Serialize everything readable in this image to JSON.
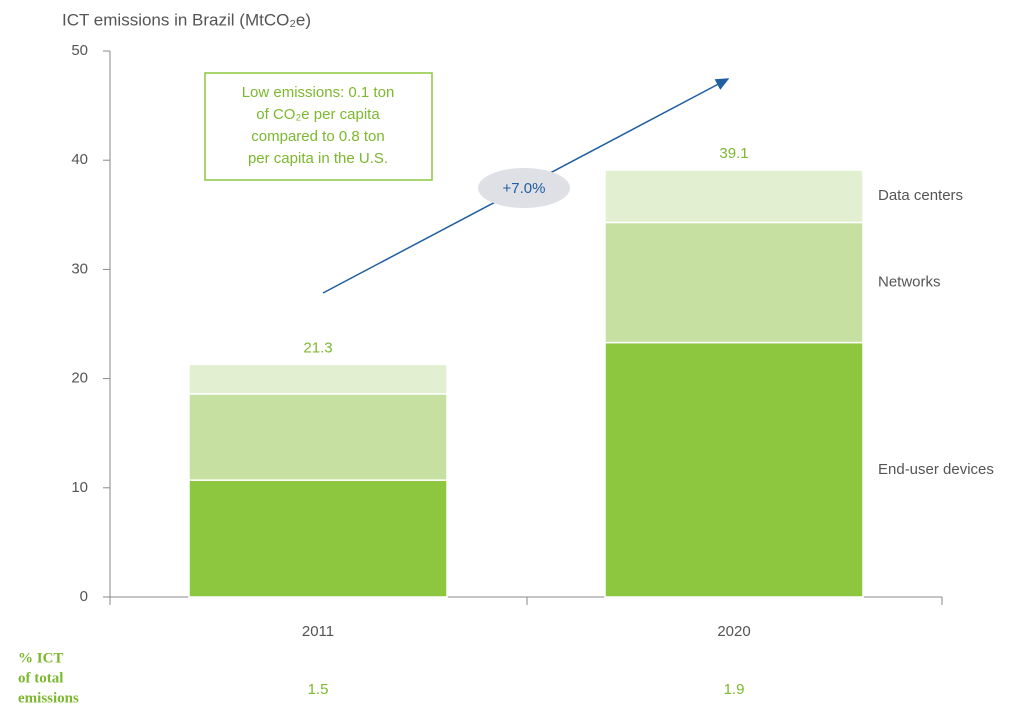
{
  "chart_data": {
    "type": "bar",
    "stacked": true,
    "title": "ICT emissions in Brazil (MtCO₂e)",
    "categories": [
      "2011",
      "2020"
    ],
    "series": [
      {
        "name": "End-user devices",
        "color": "#8dc63f",
        "values": [
          10.7,
          23.3
        ]
      },
      {
        "name": "Networks",
        "color": "#c5e0a0",
        "values": [
          7.9,
          11.0
        ]
      },
      {
        "name": "Data centers",
        "color": "#e2efd0",
        "values": [
          2.7,
          4.8
        ]
      }
    ],
    "totals": [
      21.3,
      39.1
    ],
    "ylim": [
      0,
      50
    ],
    "yticks": [
      0,
      10,
      20,
      30,
      40,
      50
    ],
    "annotation": [
      "Low emissions: 0.1 ton",
      "of CO₂e per capita",
      "compared to 0.8 ton",
      "per capita in the U.S."
    ],
    "growth_label": "+7.0%",
    "share_of_total": {
      "label": [
        "% ICT",
        "of total",
        "emissions"
      ],
      "values": [
        1.5,
        1.9
      ]
    }
  }
}
